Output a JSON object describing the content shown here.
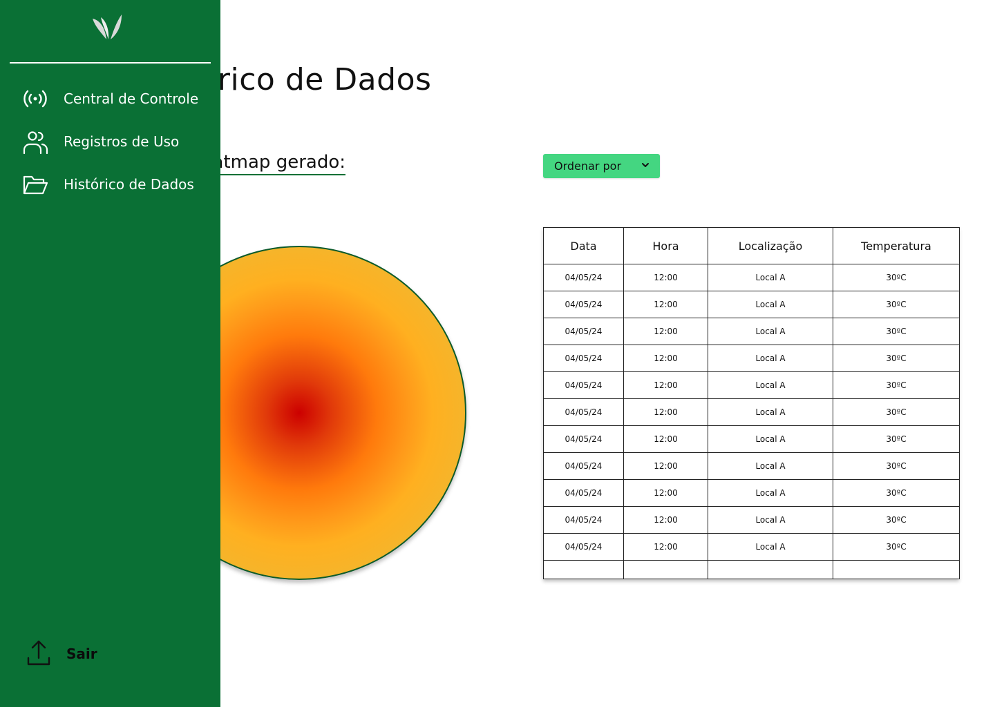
{
  "colors": {
    "sidebar_bg": "#0a7035",
    "dropdown_bg": "#44d681",
    "heat_hot": "#cc0000",
    "heat_warm": "#ffb020",
    "heat_cool": "#27a043"
  },
  "sidebar": {
    "logo_icon": "leaf-logo-icon",
    "items": [
      {
        "label": "Central de Controle",
        "icon": "broadcast-icon"
      },
      {
        "label": "Registros de Uso",
        "icon": "users-icon"
      },
      {
        "label": "Histórico de Dados",
        "icon": "folder-open-icon"
      }
    ],
    "logout": {
      "label": "Sair",
      "icon": "upload-icon"
    }
  },
  "main": {
    "title": "Histórico de Dados",
    "heatmap_label": "Heatmap gerado:",
    "sort": {
      "label": "Ordenar por",
      "icon": "chevron-down-icon"
    }
  },
  "table": {
    "headers": [
      "Data",
      "Hora",
      "Localização",
      "Temperatura"
    ],
    "rows": [
      [
        "04/05/24",
        "12:00",
        "Local A",
        "30ºC"
      ],
      [
        "04/05/24",
        "12:00",
        "Local A",
        "30ºC"
      ],
      [
        "04/05/24",
        "12:00",
        "Local A",
        "30ºC"
      ],
      [
        "04/05/24",
        "12:00",
        "Local A",
        "30ºC"
      ],
      [
        "04/05/24",
        "12:00",
        "Local A",
        "30ºC"
      ],
      [
        "04/05/24",
        "12:00",
        "Local A",
        "30ºC"
      ],
      [
        "04/05/24",
        "12:00",
        "Local A",
        "30ºC"
      ],
      [
        "04/05/24",
        "12:00",
        "Local A",
        "30ºC"
      ],
      [
        "04/05/24",
        "12:00",
        "Local A",
        "30ºC"
      ],
      [
        "04/05/24",
        "12:00",
        "Local A",
        "30ºC"
      ],
      [
        "04/05/24",
        "12:00",
        "Local A",
        "30ºC"
      ],
      [
        "",
        "",
        "",
        ""
      ]
    ]
  }
}
